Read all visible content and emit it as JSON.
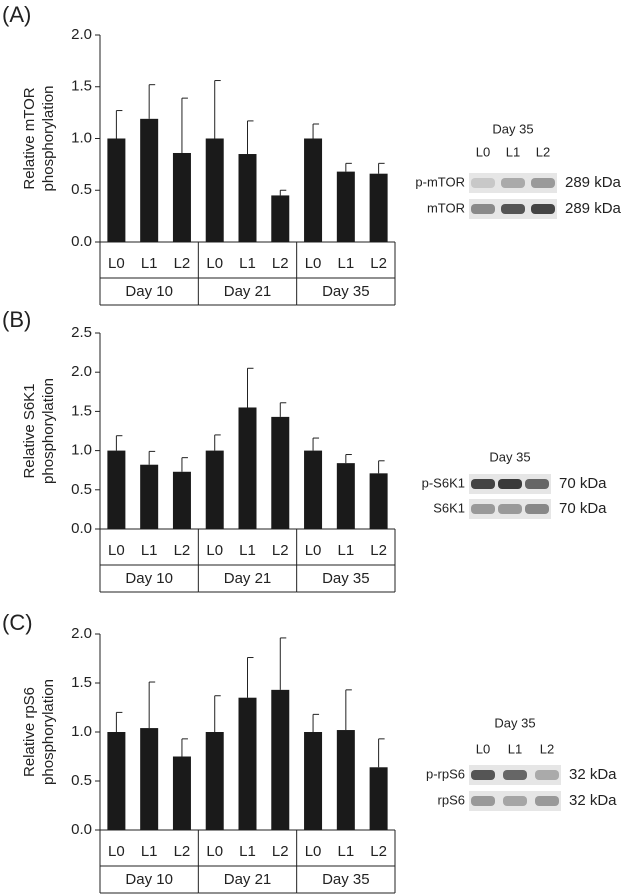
{
  "chart_data": [
    {
      "type": "bar",
      "panel": "(A)",
      "ylabel": [
        "Relative mTOR",
        "phosphorylation"
      ],
      "categories": [
        "L0",
        "L1",
        "L2",
        "L0",
        "L1",
        "L2",
        "L0",
        "L1",
        "L2"
      ],
      "groups": [
        "Day 10",
        "Day 21",
        "Day 35"
      ],
      "values": [
        1.0,
        1.19,
        0.86,
        1.0,
        0.85,
        0.45,
        1.0,
        0.68,
        0.66
      ],
      "errors": [
        0.27,
        0.33,
        0.53,
        0.56,
        0.32,
        0.05,
        0.14,
        0.08,
        0.1
      ],
      "color": "#1a1a1a",
      "ylim": [
        0,
        2
      ],
      "yticks": [
        {
          "value": 0,
          "label": "0.0"
        },
        0.5,
        {
          "value": 1,
          "label": "1.0"
        },
        1.5,
        {
          "value": 2,
          "label": "2.0"
        }
      ],
      "blot": {
        "title": "Day 35",
        "lanes": [
          "L0",
          "L1",
          "L2"
        ],
        "rows": [
          {
            "label": "p-mTOR",
            "size": "289 kDa"
          },
          {
            "label": "mTOR",
            "size": "289 kDa"
          }
        ]
      }
    },
    {
      "type": "bar",
      "panel": "(B)",
      "ylabel": [
        "Relative S6K1",
        "phosphorylation"
      ],
      "categories": [
        "L0",
        "L1",
        "L2",
        "L0",
        "L1",
        "L2",
        "L0",
        "L1",
        "L2"
      ],
      "groups": [
        "Day 10",
        "Day 21",
        "Day 35"
      ],
      "values": [
        1.0,
        0.82,
        0.73,
        1.0,
        1.55,
        1.43,
        1.0,
        0.84,
        0.71
      ],
      "errors": [
        0.19,
        0.17,
        0.18,
        0.2,
        0.5,
        0.18,
        0.16,
        0.11,
        0.16
      ],
      "color": "#1a1a1a",
      "ylim": [
        0,
        2.5
      ],
      "yticks": [
        {
          "value": 0,
          "label": "0.0"
        },
        0.5,
        {
          "value": 1,
          "label": "1.0"
        },
        1.5,
        {
          "value": 2,
          "label": "2.0"
        },
        2.5
      ],
      "blot": {
        "title": "Day 35",
        "lanes": [
          "L0",
          "L1",
          "L2"
        ],
        "rows": [
          {
            "label": "p-S6K1",
            "size": "70 kDa"
          },
          {
            "label": "S6K1",
            "size": "70 kDa"
          }
        ]
      }
    },
    {
      "type": "bar",
      "panel": "(C)",
      "ylabel": [
        "Relative rpS6",
        "phosphorylation"
      ],
      "categories": [
        "L0",
        "L1",
        "L2",
        "L0",
        "L1",
        "L2",
        "L0",
        "L1",
        "L2"
      ],
      "groups": [
        "Day 10",
        "Day 21",
        "Day 35"
      ],
      "values": [
        1.0,
        1.04,
        0.75,
        1.0,
        1.35,
        1.43,
        1.0,
        1.02,
        0.64
      ],
      "errors": [
        0.2,
        0.47,
        0.18,
        0.37,
        0.41,
        0.53,
        0.18,
        0.41,
        0.29
      ],
      "color": "#1a1a1a",
      "ylim": [
        0,
        2
      ],
      "yticks": [
        {
          "value": 0,
          "label": "0.0"
        },
        0.5,
        {
          "value": 1,
          "label": "1.0"
        },
        1.5,
        {
          "value": 2,
          "label": "2.0"
        }
      ],
      "blot": {
        "title": "Day 35",
        "lanes": [
          "L0",
          "L1",
          "L2"
        ],
        "rows": [
          {
            "label": "p-rpS6",
            "size": "32 kDa"
          },
          {
            "label": "rpS6",
            "size": "32 kDa"
          }
        ]
      }
    }
  ]
}
